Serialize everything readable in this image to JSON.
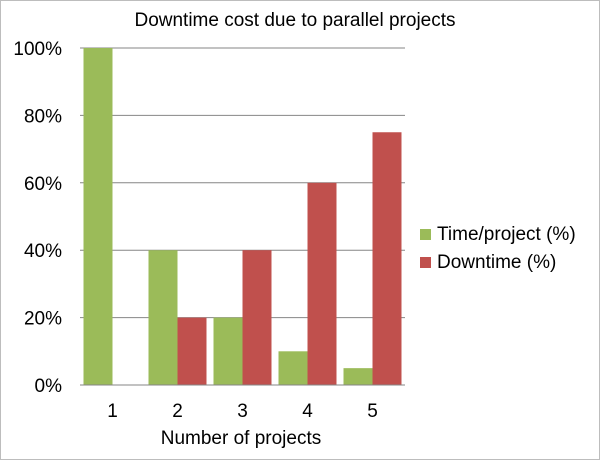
{
  "chart_data": {
    "type": "bar",
    "title": "Downtime cost due to parallel projects",
    "xlabel": "Number of projects",
    "ylabel": "",
    "categories": [
      "1",
      "2",
      "3",
      "4",
      "5"
    ],
    "series": [
      {
        "name": "Time/project (%)",
        "values": [
          100,
          40,
          20,
          10,
          5
        ],
        "color": "#9bbb59"
      },
      {
        "name": "Downtime (%)",
        "values": [
          0,
          20,
          40,
          60,
          75
        ],
        "color": "#c0504d"
      }
    ],
    "ylim": [
      0,
      100
    ],
    "yticks": [
      "0%",
      "20%",
      "40%",
      "60%",
      "80%",
      "100%"
    ],
    "grid": true,
    "legend_position": "right"
  }
}
